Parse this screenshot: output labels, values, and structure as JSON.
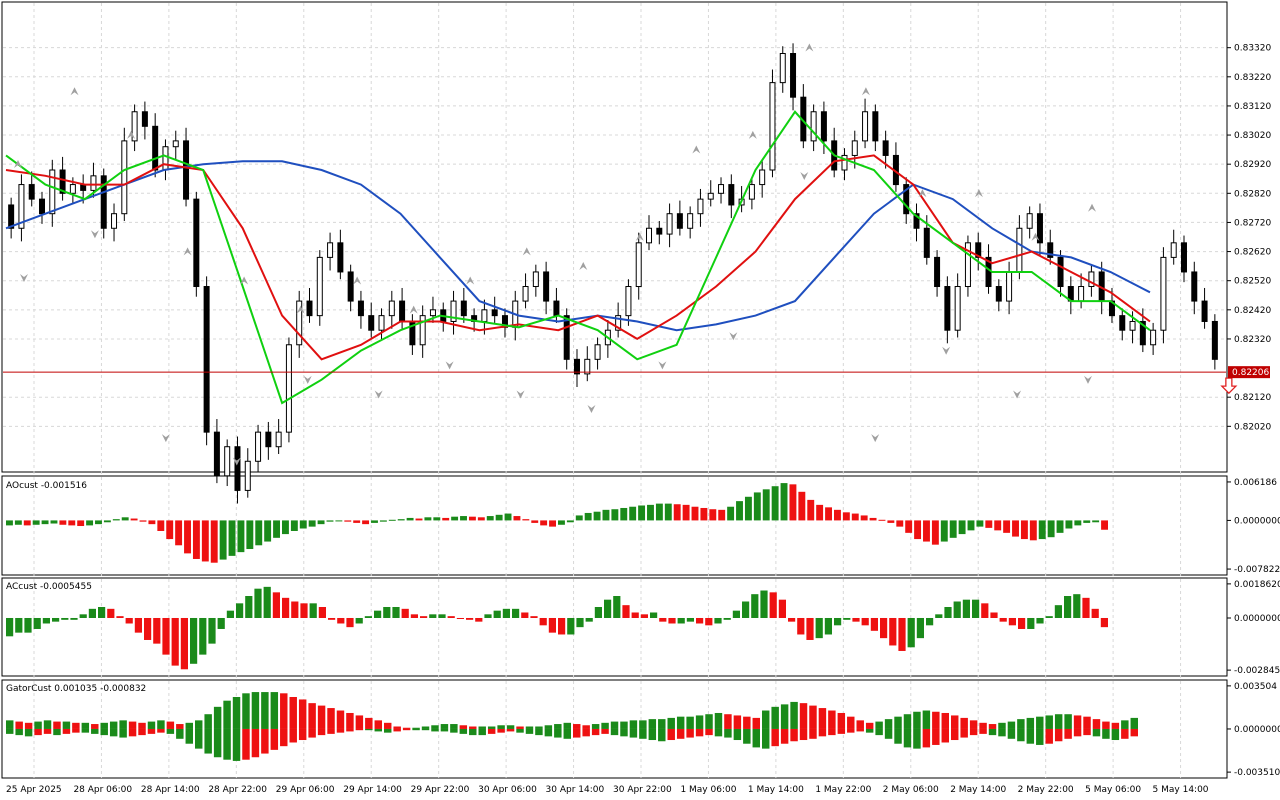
{
  "colors": {
    "background": "#ffffff",
    "grid": "#d8d8d8",
    "candle": "#000000",
    "jaw": "#1f4fbf",
    "teeth": "#e01010",
    "lips": "#10d010",
    "up": "#1a8a1a",
    "down": "#ee1111",
    "fractal": "#a0a0a0",
    "price_line": "#c00000",
    "price_tag": "#c00000",
    "signal_arrow": "#e02020"
  },
  "chart_data": [
    {
      "type": "candlestick",
      "name": "price",
      "ylim": [
        0.8196,
        0.8338
      ],
      "y_ticks": [
        "0.83320",
        "0.83220",
        "0.83120",
        "0.83020",
        "0.82920",
        "0.82820",
        "0.82720",
        "0.82620",
        "0.82520",
        "0.82420",
        "0.82320",
        "0.82120",
        "0.82020"
      ],
      "current_price": "0.82206",
      "x_ticks": [
        "25 Apr 2025",
        "28 Apr 06:00",
        "28 Apr 14:00",
        "28 Apr 22:00",
        "29 Apr 06:00",
        "29 Apr 14:00",
        "29 Apr 22:00",
        "30 Apr 06:00",
        "30 Apr 14:00",
        "30 Apr 22:00",
        "1 May 06:00",
        "1 May 14:00",
        "1 May 22:00",
        "2 May 06:00",
        "2 May 14:00",
        "2 May 22:00",
        "5 May 06:00",
        "5 May 14:00"
      ],
      "close": [
        0.827,
        0.8285,
        0.828,
        0.8275,
        0.829,
        0.8282,
        0.8285,
        0.8283,
        0.8288,
        0.827,
        0.8275,
        0.83,
        0.831,
        0.8305,
        0.829,
        0.8298,
        0.83,
        0.828,
        0.825,
        0.82,
        0.8185,
        0.8195,
        0.818,
        0.819,
        0.82,
        0.8195,
        0.82,
        0.823,
        0.8245,
        0.824,
        0.826,
        0.8265,
        0.8255,
        0.8245,
        0.824,
        0.8235,
        0.824,
        0.8245,
        0.8238,
        0.823,
        0.824,
        0.8242,
        0.8238,
        0.8245,
        0.824,
        0.8238,
        0.8242,
        0.824,
        0.8236,
        0.8245,
        0.825,
        0.8255,
        0.8245,
        0.824,
        0.8225,
        0.822,
        0.8225,
        0.823,
        0.8235,
        0.824,
        0.825,
        0.8265,
        0.827,
        0.8268,
        0.8275,
        0.827,
        0.8275,
        0.828,
        0.8282,
        0.8285,
        0.8278,
        0.828,
        0.8285,
        0.829,
        0.832,
        0.833,
        0.8315,
        0.83,
        0.831,
        0.83,
        0.829,
        0.8295,
        0.83,
        0.831,
        0.83,
        0.8295,
        0.8285,
        0.8275,
        0.827,
        0.826,
        0.825,
        0.8235,
        0.825,
        0.8265,
        0.826,
        0.825,
        0.8245,
        0.8255,
        0.827,
        0.8275,
        0.8265,
        0.826,
        0.825,
        0.8245,
        0.825,
        0.8255,
        0.8245,
        0.824,
        0.8235,
        0.8238,
        0.823,
        0.8235,
        0.826,
        0.8265,
        0.8255,
        0.8245,
        0.8238,
        0.8225
      ],
      "fractals_up": [
        0.829,
        0.8315,
        0.83,
        0.826,
        0.825,
        0.824,
        0.825,
        0.824,
        0.825,
        0.826,
        0.8255,
        0.8265,
        0.8295,
        0.83,
        0.833,
        0.8315,
        0.828,
        0.828,
        0.8265,
        0.8275
      ],
      "fractals_down": [
        0.8255,
        0.827,
        0.82,
        0.8192,
        0.822,
        0.8215,
        0.8225,
        0.8215,
        0.821,
        0.8225,
        0.8235,
        0.829,
        0.82,
        0.823,
        0.8215,
        0.822
      ],
      "alligator": [
        {
          "name": "jaw",
          "values": [
            0.827,
            0.8275,
            0.828,
            0.8285,
            0.829,
            0.8292,
            0.8293,
            0.8293,
            0.829,
            0.8285,
            0.8275,
            0.826,
            0.8245,
            0.824,
            0.8238,
            0.824,
            0.8238,
            0.8235,
            0.8237,
            0.824,
            0.8245,
            0.826,
            0.8275,
            0.8285,
            0.828,
            0.827,
            0.8262,
            0.826,
            0.8255,
            0.8248
          ]
        },
        {
          "name": "teeth",
          "values": [
            0.829,
            0.8288,
            0.8285,
            0.8285,
            0.8292,
            0.829,
            0.827,
            0.824,
            0.8225,
            0.823,
            0.8238,
            0.8238,
            0.8235,
            0.8237,
            0.8235,
            0.824,
            0.8232,
            0.824,
            0.825,
            0.8262,
            0.828,
            0.8293,
            0.8295,
            0.8285,
            0.8265,
            0.8258,
            0.8262,
            0.8255,
            0.8248,
            0.8238
          ]
        },
        {
          "name": "lips",
          "values": [
            0.8295,
            0.8285,
            0.828,
            0.829,
            0.8295,
            0.829,
            0.825,
            0.821,
            0.8218,
            0.8228,
            0.8235,
            0.824,
            0.8238,
            0.8236,
            0.824,
            0.8235,
            0.8225,
            0.823,
            0.826,
            0.829,
            0.831,
            0.8295,
            0.829,
            0.8275,
            0.8265,
            0.8255,
            0.8255,
            0.8245,
            0.8245,
            0.8235
          ]
        }
      ]
    },
    {
      "type": "bar",
      "name": "AOcust",
      "label": "AOcust -0.001516",
      "ylim": [
        -0.007822,
        0.006186
      ],
      "y_ticks": [
        "0.006186",
        "0.0000000",
        "-0.007822"
      ],
      "values": [
        -0.0008,
        -0.0007,
        -0.0008,
        -0.0007,
        -0.0006,
        -0.0005,
        -0.0007,
        -0.0008,
        -0.0009,
        -0.0008,
        -0.0006,
        -0.0003,
        0.0002,
        0.0005,
        0.0003,
        -0.0002,
        -0.0006,
        -0.0017,
        -0.003,
        -0.004,
        -0.0053,
        -0.0062,
        -0.0066,
        -0.0068,
        -0.0063,
        -0.0057,
        -0.0051,
        -0.0046,
        -0.004,
        -0.0034,
        -0.0028,
        -0.0022,
        -0.0017,
        -0.0013,
        -0.001,
        -0.0006,
        -0.0002,
        -0.0001,
        -0.0002,
        -0.0004,
        -0.0006,
        -0.0004,
        -0.0002,
        0.0001,
        0.0002,
        0.0004,
        0.0003,
        0.0005,
        0.0005,
        0.0004,
        0.0006,
        0.0007,
        0.0006,
        0.0005,
        0.0007,
        0.0009,
        0.0011,
        0.0007,
        0.0002,
        -0.0004,
        -0.0008,
        -0.001,
        -0.0007,
        -0.0003,
        0.0008,
        0.0012,
        0.0014,
        0.0017,
        0.0018,
        0.002,
        0.0022,
        0.0024,
        0.0025,
        0.0027,
        0.0027,
        0.0026,
        0.0025,
        0.0022,
        0.002,
        0.0018,
        0.0017,
        0.0022,
        0.0031,
        0.0038,
        0.0045,
        0.005,
        0.0055,
        0.006,
        0.0058,
        0.0046,
        0.0033,
        0.0025,
        0.0021,
        0.0017,
        0.0013,
        0.0011,
        0.0008,
        0.0004,
        0.0001,
        -0.0004,
        -0.001,
        -0.002,
        -0.003,
        -0.0034,
        -0.0039,
        -0.0034,
        -0.0028,
        -0.0022,
        -0.0016,
        -0.001,
        -0.0012,
        -0.0016,
        -0.002,
        -0.0026,
        -0.003,
        -0.0032,
        -0.003,
        -0.0027,
        -0.002,
        -0.0013,
        -0.0008,
        -0.0004,
        -0.0003,
        -0.0015
      ]
    },
    {
      "type": "bar",
      "name": "ACcust",
      "label": "ACcust -0.0005455",
      "ylim": [
        -0.0028456,
        0.001862
      ],
      "y_ticks": [
        "0.0018620",
        "0.0000000",
        "-0.0028456"
      ],
      "values": [
        -0.001,
        -0.0008,
        -0.0008,
        -0.0006,
        -0.0003,
        -0.0002,
        -0.0001,
        -0.0001,
        0.0002,
        0.0005,
        0.0006,
        0.0005,
        0.0001,
        -0.0003,
        -0.0008,
        -0.0012,
        -0.0014,
        -0.002,
        -0.0026,
        -0.0028,
        -0.0025,
        -0.002,
        -0.0014,
        -0.0006,
        0.0004,
        0.0008,
        0.0012,
        0.0016,
        0.0017,
        0.0014,
        0.0011,
        0.0009,
        0.0008,
        0.0008,
        0.0006,
        -0.0001,
        -0.0003,
        -0.0005,
        -0.0003,
        0.0001,
        0.0004,
        0.0006,
        0.0006,
        0.0005,
        0.0002,
        0.0001,
        0.0002,
        0.0002,
        0.0001,
        0.0,
        -0.0001,
        -0.0002,
        0.0002,
        0.0004,
        0.0005,
        0.0005,
        0.0003,
        0.0001,
        -0.0004,
        -0.0008,
        -0.0009,
        -0.0009,
        -0.0005,
        -0.0002,
        0.0006,
        0.001,
        0.0012,
        0.0007,
        0.0003,
        0.0002,
        0.0003,
        -0.0002,
        -0.0003,
        -0.0003,
        -0.0002,
        -0.0003,
        -0.0004,
        -0.0003,
        -0.0001,
        0.0004,
        0.0009,
        0.0013,
        0.0015,
        0.0014,
        0.001,
        -0.0002,
        -0.0009,
        -0.0012,
        -0.0011,
        -0.0009,
        -0.0004,
        -0.0001,
        -0.0002,
        -0.0004,
        -0.0007,
        -0.0011,
        -0.0015,
        -0.0018,
        -0.0016,
        -0.0011,
        -0.0004,
        0.0002,
        0.0006,
        0.0009,
        0.001,
        0.001,
        0.0008,
        0.0003,
        -0.0002,
        -0.0004,
        -0.0006,
        -0.0006,
        -0.0003,
        0.0001,
        0.0007,
        0.0012,
        0.0013,
        0.0011,
        0.0005,
        -0.0005
      ]
    },
    {
      "type": "bar",
      "name": "GatorCust",
      "label": "GatorCust 0.001035 -0.000832",
      "ylim": [
        -0.00351,
        0.003504
      ],
      "y_ticks": [
        "0.003504",
        "0.0000000",
        "-0.003510"
      ],
      "upper": [
        0.0007,
        0.0006,
        0.0005,
        0.0006,
        0.0007,
        0.0006,
        0.0006,
        0.0005,
        0.0005,
        0.0004,
        0.0005,
        0.0006,
        0.0007,
        0.0006,
        0.0005,
        0.0006,
        0.0007,
        0.0006,
        0.0004,
        0.0005,
        0.0007,
        0.0012,
        0.0018,
        0.0023,
        0.0026,
        0.0029,
        0.003,
        0.003,
        0.003,
        0.0029,
        0.0026,
        0.0024,
        0.0021,
        0.0019,
        0.0017,
        0.0015,
        0.0013,
        0.0011,
        0.0009,
        0.0007,
        0.0005,
        0.0002,
        0.0001,
        0.0001,
        0.0002,
        0.0003,
        0.0004,
        0.0004,
        0.0003,
        0.0002,
        0.0002,
        0.0002,
        0.0003,
        0.0003,
        0.0002,
        0.0002,
        0.0002,
        0.0003,
        0.0004,
        0.0005,
        0.0004,
        0.0003,
        0.0004,
        0.0005,
        0.0006,
        0.0006,
        0.0007,
        0.0007,
        0.0008,
        0.0008,
        0.0009,
        0.001,
        0.001,
        0.0011,
        0.0012,
        0.0013,
        0.0012,
        0.0011,
        0.001,
        0.0009,
        0.0015,
        0.0018,
        0.002,
        0.0022,
        0.0021,
        0.0019,
        0.0017,
        0.0015,
        0.0013,
        0.001,
        0.0007,
        0.0005,
        0.0006,
        0.0008,
        0.001,
        0.0012,
        0.0014,
        0.0015,
        0.0014,
        0.0013,
        0.0011,
        0.0009,
        0.0007,
        0.0005,
        0.0004,
        0.0005,
        0.0006,
        0.0008,
        0.0009,
        0.001,
        0.0011,
        0.0012,
        0.0012,
        0.0011,
        0.001,
        0.0008,
        0.0006,
        0.0005,
        0.0007,
        0.0009
      ],
      "lower": [
        -0.0004,
        -0.0005,
        -0.0006,
        -0.0005,
        -0.0004,
        -0.0005,
        -0.0004,
        -0.0003,
        -0.0003,
        -0.0004,
        -0.0005,
        -0.0006,
        -0.0007,
        -0.0006,
        -0.0005,
        -0.0004,
        -0.0003,
        -0.0004,
        -0.0008,
        -0.0012,
        -0.0016,
        -0.002,
        -0.0023,
        -0.0025,
        -0.0026,
        -0.0025,
        -0.0023,
        -0.002,
        -0.0017,
        -0.0014,
        -0.0011,
        -0.0009,
        -0.0007,
        -0.0005,
        -0.0004,
        -0.0003,
        -0.0002,
        -0.0001,
        -0.0001,
        -0.0002,
        -0.0003,
        -0.0002,
        -0.0001,
        -0.0001,
        -0.0001,
        -0.0002,
        -0.0002,
        -0.0003,
        -0.0004,
        -0.0005,
        -0.0005,
        -0.0004,
        -0.0003,
        -0.0002,
        -0.0003,
        -0.0004,
        -0.0005,
        -0.0006,
        -0.0007,
        -0.0008,
        -0.0007,
        -0.0006,
        -0.0005,
        -0.0004,
        -0.0005,
        -0.0006,
        -0.0007,
        -0.0008,
        -0.0009,
        -0.001,
        -0.0009,
        -0.0008,
        -0.0007,
        -0.0006,
        -0.0005,
        -0.0006,
        -0.0007,
        -0.0009,
        -0.0012,
        -0.0015,
        -0.0016,
        -0.0014,
        -0.0012,
        -0.001,
        -0.0009,
        -0.0008,
        -0.0006,
        -0.0005,
        -0.0004,
        -0.0003,
        -0.0002,
        -0.0003,
        -0.0005,
        -0.0008,
        -0.0012,
        -0.0015,
        -0.0016,
        -0.0015,
        -0.0013,
        -0.0011,
        -0.0009,
        -0.0007,
        -0.0005,
        -0.0004,
        -0.0005,
        -0.0006,
        -0.0008,
        -0.001,
        -0.0012,
        -0.0013,
        -0.0012,
        -0.001,
        -0.0008,
        -0.0006,
        -0.0005,
        -0.0006,
        -0.0008,
        -0.0009,
        -0.0008,
        -0.0006
      ]
    }
  ]
}
